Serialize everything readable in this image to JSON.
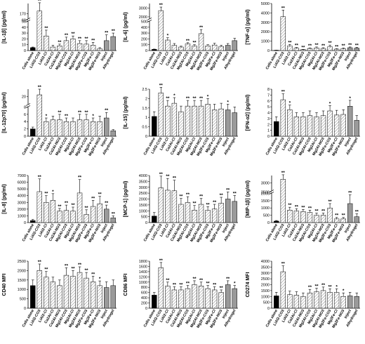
{
  "chart_data": [
    {
      "type": "bar",
      "ylabel": "[IL-1β] (pg/ml)",
      "yticks": [
        0,
        10,
        20,
        30,
        40,
        50,
        60,
        170
      ],
      "ylim": [
        0,
        70
      ],
      "break": {
        "low": 50,
        "high": 160,
        "top": 190
      },
      "categories": [
        "Cells alone",
        "LiAl2-CO3",
        "LiAl2-Cl",
        "Ca2Al-Cl",
        "Ca2Al-NO3",
        "Mg2Al-CO3",
        "Mg2Al-Cl",
        "Mg2Al-NO3",
        "Mg2Fe-CO3",
        "Mg2Fe-Cl",
        "Mg2Fe-NO3",
        "Inject",
        "Alhydrogel"
      ],
      "values": [
        5,
        175,
        25,
        6,
        8,
        17,
        20,
        12,
        11,
        9,
        3,
        17,
        24
      ],
      "errors": [
        1,
        20,
        10,
        3,
        3,
        6,
        5,
        5,
        6,
        5,
        2,
        10,
        6
      ],
      "sig": [
        "",
        "**",
        "**",
        "",
        "**",
        "**",
        "**",
        "**",
        "**",
        "**",
        "",
        "**",
        "**"
      ]
    },
    {
      "type": "bar",
      "ylabel": "[IL-6] (pg/ml)",
      "yticks": [
        0,
        100,
        200,
        300,
        400,
        500,
        2000,
        3000
      ],
      "ylim": [
        0,
        600
      ],
      "break": {
        "low": 500,
        "high": 1800,
        "top": 3500
      },
      "categories": [
        "Cells alone",
        "LiAl2-CO3",
        "LiAl2-Cl",
        "Ca2Al-Cl",
        "Ca2Al-NO3",
        "Mg2Al-CO3",
        "Mg2Al-Cl",
        "Mg2Al-NO3",
        "Mg2Fe-CO3",
        "Mg2Fe-Cl",
        "Mg2Fe-NO3",
        "Inject",
        "Alhydrogel"
      ],
      "values": [
        20,
        2700,
        180,
        90,
        60,
        115,
        80,
        290,
        80,
        95,
        70,
        90,
        170
      ],
      "errors": [
        5,
        400,
        40,
        30,
        15,
        20,
        20,
        70,
        20,
        30,
        20,
        30,
        40
      ],
      "sig": [
        "",
        "**",
        "*",
        "",
        "",
        "**",
        "**",
        "**",
        "",
        "",
        "",
        "",
        ""
      ]
    },
    {
      "type": "bar",
      "ylabel": "[TNF-α] (pg/ml)",
      "yticks": [
        0,
        1000,
        2000,
        3000,
        4000,
        5000
      ],
      "ylim": [
        0,
        5000
      ],
      "categories": [
        "Cells alone",
        "LiAl2-CO3",
        "LiAl2-Cl",
        "Ca2Al-Cl",
        "Ca2Al-NO3",
        "Mg2Al-CO3",
        "Mg2Al-Cl",
        "Mg2Al-NO3",
        "Mg2Fe-CO3",
        "Mg2Fe-Cl",
        "Mg2Fe-NO3",
        "Inject",
        "Alhydrogel"
      ],
      "values": [
        30,
        3600,
        500,
        250,
        100,
        220,
        280,
        220,
        400,
        150,
        200,
        300,
        260
      ],
      "errors": [
        10,
        700,
        150,
        80,
        30,
        60,
        100,
        80,
        180,
        50,
        80,
        80,
        80
      ],
      "sig": [
        "",
        "**",
        "**",
        "**",
        "**",
        "**",
        "**",
        "**",
        "**",
        "**",
        "**",
        "**",
        "**"
      ]
    },
    {
      "type": "bar",
      "ylabel": "[IL-12p70] (pg/ml)",
      "yticks": [
        0,
        2,
        4,
        6,
        8,
        20
      ],
      "ylim": [
        0,
        10
      ],
      "break": {
        "low": 8,
        "high": 18,
        "top": 22
      },
      "categories": [
        "Cells alone",
        "LiAl2-CO3",
        "LiAl2-Cl",
        "Ca2Al-Cl",
        "Ca2Al-NO3",
        "Mg2Al-CO3",
        "Mg2Al-Cl",
        "Mg2Al-NO3",
        "Mg2Fe-CO3",
        "Mg2Fe-Cl",
        "Mg2Fe-NO3",
        "Inject",
        "Alhydrogel"
      ],
      "values": [
        2,
        20.5,
        4,
        4.5,
        4.5,
        4,
        4,
        4.5,
        4.5,
        4,
        4,
        5,
        1.5
      ],
      "errors": [
        0.5,
        1.5,
        1,
        1,
        1.5,
        1,
        1,
        1.5,
        1.5,
        1,
        1.5,
        1.5,
        0.3
      ],
      "sig": [
        "",
        "**",
        "*",
        "",
        "**",
        "**",
        "",
        "**",
        "**",
        "*",
        "",
        "**",
        ""
      ]
    },
    {
      "type": "bar",
      "ylabel": "[IL-15] (pg/ml)",
      "yticks": [
        0.0,
        0.5,
        1.0,
        1.5,
        2.0,
        2.5
      ],
      "ylim": [
        0,
        2.5
      ],
      "categories": [
        "Cells alone",
        "LiAl2-CO3",
        "LiAl2-Cl",
        "Ca2Al-Cl",
        "Ca2Al-NO3",
        "Mg2Al-CO3",
        "Mg2Al-Cl",
        "Mg2Al-NO3",
        "Mg2Fe-CO3",
        "Mg2Fe-Cl",
        "Mg2Fe-NO3",
        "Inject",
        "Alhydrogel"
      ],
      "values": [
        1.05,
        2.3,
        1.6,
        1.75,
        1.3,
        1.6,
        1.6,
        1.6,
        1.7,
        1.4,
        1.45,
        1.4,
        1.25
      ],
      "errors": [
        0.25,
        0.3,
        0.3,
        0.3,
        0.3,
        0.3,
        0.3,
        0.3,
        0.3,
        0.3,
        0.3,
        0.3,
        0.3
      ],
      "sig": [
        "",
        "**",
        "**",
        "*",
        "",
        "**",
        "**",
        "**",
        "*",
        "",
        "",
        "*",
        ""
      ]
    },
    {
      "type": "bar",
      "ylabel": "[IFN-α2] (pg/ml)",
      "yticks": [
        0,
        1,
        2,
        3,
        4,
        5,
        6,
        7,
        8
      ],
      "ylim": [
        0,
        8
      ],
      "categories": [
        "Cells alone",
        "LiAl2-CO3",
        "LiAl2-Cl",
        "Ca2Al-Cl",
        "Ca2Al-NO3",
        "Mg2Al-CO3",
        "Mg2Al-Cl",
        "Mg2Al-NO3",
        "Mg2Fe-CO3",
        "Mg2Fe-Cl",
        "Mg2Fe-NO3",
        "Inject",
        "Alhydrogel"
      ],
      "values": [
        2.5,
        6.2,
        4.5,
        3.3,
        3.3,
        3.5,
        3.3,
        3.5,
        4.3,
        3.6,
        3.7,
        5.1,
        2.7
      ],
      "errors": [
        0.8,
        1.0,
        0.8,
        0.7,
        0.7,
        0.8,
        0.7,
        0.8,
        0.9,
        0.8,
        0.8,
        1.0,
        0.8
      ],
      "sig": [
        "",
        "**",
        "*",
        "",
        "",
        "",
        "",
        "",
        "*",
        "",
        "",
        "*",
        ""
      ]
    },
    {
      "type": "bar",
      "ylabel": "[IL-8] (pg/ml)",
      "yticks": [
        0,
        1000,
        2000,
        3000,
        4000,
        5000,
        6000,
        7000
      ],
      "ylim": [
        0,
        7000
      ],
      "categories": [
        "Cells alone",
        "LiAl2-CO3",
        "LiAl2-Cl",
        "Ca2Al-Cl",
        "Ca2Al-NO3",
        "Mg2Al-CO3",
        "Mg2Al-Cl",
        "Mg2Al-NO3",
        "Mg2Fe-CO3",
        "Mg2Fe-Cl",
        "Mg2Fe-NO3",
        "Inject",
        "Alhydrogel"
      ],
      "values": [
        300,
        4600,
        3000,
        3300,
        1700,
        1800,
        1700,
        4400,
        1200,
        2400,
        2800,
        2000,
        700
      ],
      "errors": [
        150,
        1900,
        1000,
        1000,
        400,
        800,
        600,
        2000,
        700,
        900,
        1100,
        600,
        300
      ],
      "sig": [
        "",
        "**",
        "**",
        "*",
        "**",
        "**",
        "**",
        "**",
        "**",
        "**",
        "**",
        "**",
        "**"
      ]
    },
    {
      "type": "bar",
      "ylabel": "[MCP-1] (pg/ml)",
      "yticks": [
        0,
        500,
        1000,
        1500,
        2000,
        2500,
        3000,
        3500,
        4000
      ],
      "ylim": [
        0,
        4000
      ],
      "categories": [
        "Cells alone",
        "LiAl2-CO3",
        "LiAl2-Cl",
        "Ca2Al-Cl",
        "Ca2Al-NO3",
        "Mg2Al-CO3",
        "Mg2Al-Cl",
        "Mg2Al-NO3",
        "Mg2Fe-CO3",
        "Mg2Fe-Cl",
        "Mg2Fe-NO3",
        "Inject",
        "Alhydrogel"
      ],
      "values": [
        550,
        2950,
        2750,
        2700,
        1550,
        1700,
        1050,
        1550,
        1050,
        1150,
        1650,
        2000,
        1800
      ],
      "errors": [
        300,
        1000,
        1000,
        900,
        500,
        500,
        400,
        500,
        300,
        400,
        500,
        600,
        500
      ],
      "sig": [
        "",
        "**",
        "**",
        "**",
        "**",
        "**",
        "**",
        "**",
        "**",
        "**",
        "**",
        "**",
        "**"
      ]
    },
    {
      "type": "bar",
      "ylabel": "[MIP-1β] (pg/ml)",
      "yticks": [
        0,
        500,
        1000,
        1500,
        2000,
        2500,
        3000
      ],
      "ylim": [
        0,
        2500
      ],
      "break": {
        "low": 2000,
        "high": 2800,
        "top": 3200
      },
      "categories": [
        "Cells alone",
        "LiAl2-CO3",
        "LiAl2-Cl",
        "Ca2Al-Cl",
        "Ca2Al-NO3",
        "Mg2Al-CO3",
        "Mg2Al-Cl",
        "Mg2Al-NO3",
        "Mg2Fe-CO3",
        "Mg2Fe-Cl",
        "Mg2Fe-NO3",
        "Inject",
        "Alhydrogel"
      ],
      "values": [
        100,
        3100,
        850,
        800,
        750,
        700,
        500,
        500,
        1000,
        250,
        250,
        1300,
        400
      ],
      "errors": [
        40,
        300,
        200,
        150,
        150,
        150,
        150,
        150,
        300,
        100,
        100,
        600,
        200
      ],
      "sig": [
        "",
        "**",
        "**",
        "**",
        "**",
        "**",
        "**",
        "**",
        "**",
        "**",
        "**",
        "**",
        "**"
      ]
    },
    {
      "type": "bar",
      "ylabel": "CD40 MFI",
      "yticks": [
        0,
        500,
        1000,
        1500,
        2000,
        2500
      ],
      "ylim": [
        0,
        2500
      ],
      "categories": [
        "Cells alone",
        "LiAl2-CO3",
        "LiAl2-Cl",
        "Ca2Al-Cl",
        "Ca2Al-NO3",
        "Mg2Al-CO3",
        "Mg2Al-Cl",
        "Mg2Al-NO3",
        "Mg2Fe-CO3",
        "Mg2Fe-Cl",
        "Mg2Fe-NO3",
        "Inject",
        "Alhydrogel"
      ],
      "values": [
        1200,
        2000,
        1650,
        1400,
        1200,
        1750,
        1700,
        1900,
        1600,
        1400,
        1200,
        1100,
        1200
      ],
      "errors": [
        300,
        350,
        300,
        250,
        300,
        400,
        300,
        300,
        300,
        300,
        250,
        300,
        300
      ],
      "sig": [
        "",
        "**",
        "**",
        "",
        "",
        "**",
        "**",
        "**",
        "**",
        "**",
        "*",
        "",
        ""
      ]
    },
    {
      "type": "bar",
      "ylabel": "CD86 MFI",
      "yticks": [
        0,
        200,
        400,
        600,
        800,
        1000,
        1200,
        1400,
        1600,
        1800
      ],
      "ylim": [
        0,
        1800
      ],
      "categories": [
        "Cells alone",
        "LiAl2-CO3",
        "LiAl2-Cl",
        "Ca2Al-Cl",
        "Ca2Al-NO3",
        "Mg2Al-CO3",
        "Mg2Al-Cl",
        "Mg2Al-NO3",
        "Mg2Fe-CO3",
        "Mg2Fe-Cl",
        "Mg2Fe-NO3",
        "Inject",
        "Alhydrogel"
      ],
      "values": [
        500,
        1550,
        850,
        700,
        700,
        750,
        900,
        850,
        750,
        700,
        600,
        900,
        750
      ],
      "errors": [
        100,
        200,
        150,
        120,
        120,
        120,
        150,
        150,
        120,
        120,
        100,
        150,
        120
      ],
      "sig": [
        "",
        "**",
        "**",
        "**",
        "**",
        "**",
        "**",
        "**",
        "**",
        "**",
        "**",
        "**",
        "*"
      ]
    },
    {
      "type": "bar",
      "ylabel": "CD274 MFI",
      "yticks": [
        0,
        500,
        1000,
        1500,
        2000,
        2500,
        3000,
        3500,
        4000
      ],
      "ylim": [
        0,
        4000
      ],
      "categories": [
        "Cells alone",
        "LiAl2-CO3",
        "LiAl2-Cl",
        "Ca2Al-Cl",
        "Ca2Al-NO3",
        "Mg2Al-CO3",
        "Mg2Al-Cl",
        "Mg2Al-NO3",
        "Mg2Fe-CO3",
        "Mg2Fe-Cl",
        "Mg2Fe-NO3",
        "Inject",
        "Alhydrogel"
      ],
      "values": [
        1050,
        3100,
        1150,
        1100,
        1000,
        1300,
        1400,
        1500,
        1350,
        1350,
        1000,
        1050,
        1000
      ],
      "errors": [
        300,
        500,
        300,
        300,
        300,
        300,
        300,
        300,
        300,
        300,
        300,
        300,
        300
      ],
      "sig": [
        "",
        "**",
        "",
        "",
        "",
        "**",
        "**",
        "**",
        "**",
        "*",
        "*",
        "",
        ""
      ]
    }
  ],
  "colors": {
    "cells_alone": "#000000",
    "ldh": "#e8e8e8",
    "inject": "#9a9a9a",
    "alhydrogel": "#9a9a9a",
    "axis": "#000000"
  }
}
